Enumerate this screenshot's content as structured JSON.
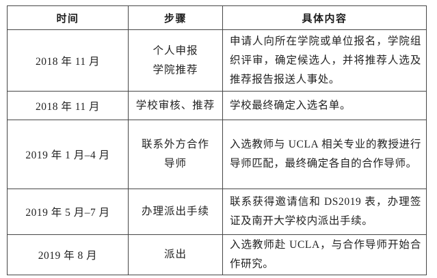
{
  "colors": {
    "border": "#454545",
    "text": "#222222",
    "background": "#ffffff"
  },
  "table": {
    "headers": [
      "时间",
      "步骤",
      "具体内容"
    ],
    "rows": [
      {
        "time": "2018 年 11 月",
        "steps": [
          "个人申报",
          "学院推荐"
        ],
        "content": "申请人向所在学院或单位报名，学院组织评审，确定候选人，并将推荐人选及推荐报告报送人事处。"
      },
      {
        "time": "2018 年 11 月",
        "steps": [
          "学校审核、推荐"
        ],
        "content": "学校最终确定入选名单。"
      },
      {
        "time": "2019 年 1 月–4 月",
        "steps": [
          "联系外方合作",
          "导师"
        ],
        "content": "入选教师与 UCLA 相关专业的教授进行导师匹配，最终确定各自的合作导师。"
      },
      {
        "time": "2019 年 5 月–7 月",
        "steps": [
          "办理派出手续"
        ],
        "content": "联系获得邀请信和 DS2019 表，办理签证及南开大学校内派出手续。"
      },
      {
        "time": "2019 年 8 月",
        "steps": [
          "派出"
        ],
        "content": "入选教师赴 UCLA，与合作导师开始合作研究。"
      }
    ]
  }
}
